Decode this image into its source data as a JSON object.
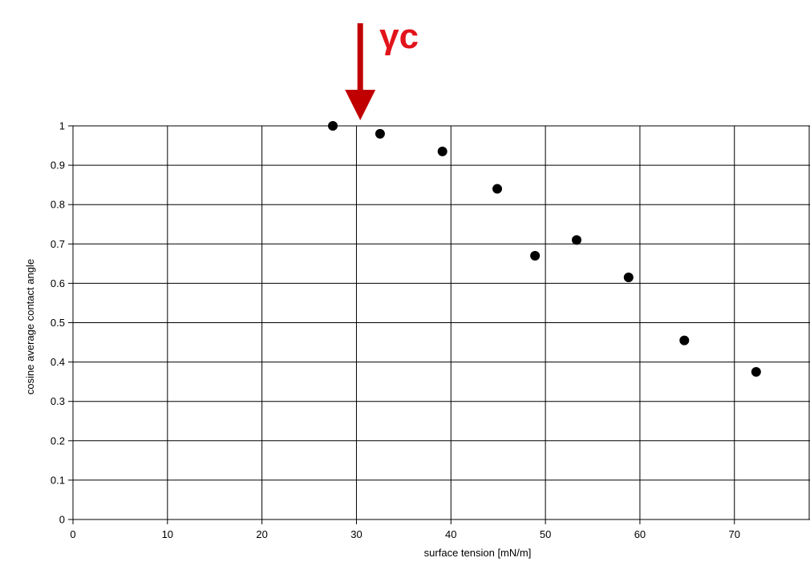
{
  "chart_data": {
    "type": "scatter",
    "xlabel": "surface tension [mN/m]",
    "ylabel": "cosine average contact angle",
    "xlim": [
      0,
      78
    ],
    "ylim": [
      0,
      1
    ],
    "x_ticks": [
      0,
      10,
      20,
      30,
      40,
      50,
      60,
      70
    ],
    "y_ticks": [
      0,
      0.1,
      0.2,
      0.3,
      0.4,
      0.5,
      0.6,
      0.7,
      0.8,
      0.9,
      1
    ],
    "grid": true,
    "legend": "none",
    "series": [
      {
        "points": [
          {
            "x": 27.5,
            "y": 1.0
          },
          {
            "x": 32.5,
            "y": 0.98
          },
          {
            "x": 39.1,
            "y": 0.935
          },
          {
            "x": 44.9,
            "y": 0.84
          },
          {
            "x": 48.9,
            "y": 0.67
          },
          {
            "x": 53.3,
            "y": 0.71
          },
          {
            "x": 58.8,
            "y": 0.615
          },
          {
            "x": 64.7,
            "y": 0.455
          },
          {
            "x": 72.3,
            "y": 0.375
          }
        ]
      }
    ],
    "annotation": {
      "text": "γc",
      "x": 30.4,
      "color": "#e2141b",
      "arrow_color": "#c00000"
    }
  }
}
